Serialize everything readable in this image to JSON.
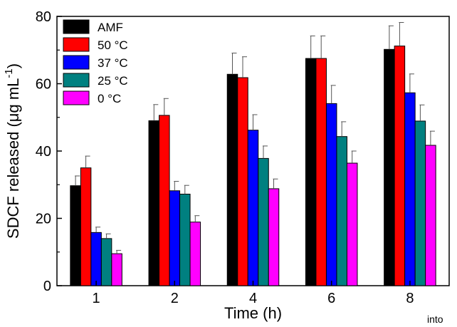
{
  "chart_data": {
    "type": "bar",
    "categories": [
      "1",
      "2",
      "4",
      "6",
      "8"
    ],
    "xlabel": "Time (h)",
    "ylabel": {
      "main": "SDCF released (",
      "mu": "μ",
      "unit": "g mL",
      "exp": "-1",
      "close": ")"
    },
    "ylim": [
      0,
      80
    ],
    "yticks": [
      0,
      20,
      40,
      60,
      80
    ],
    "grid": false,
    "legend_position": "top-left",
    "series": [
      {
        "name": "AMF",
        "color": "#000000",
        "values": [
          29.7,
          49.0,
          62.8,
          67.5,
          70.2
        ],
        "errors": [
          2.9,
          4.8,
          6.3,
          6.7,
          7.0
        ]
      },
      {
        "name": "50 °C",
        "color": "#ff0000",
        "values": [
          35.0,
          50.6,
          61.8,
          67.5,
          71.2
        ],
        "errors": [
          3.5,
          5.0,
          6.2,
          6.7,
          7.0
        ]
      },
      {
        "name": "37 °C",
        "color": "#0000ff",
        "values": [
          15.8,
          28.2,
          46.2,
          54.1,
          57.3
        ],
        "errors": [
          1.6,
          2.8,
          4.6,
          5.4,
          5.6
        ]
      },
      {
        "name": "25 °C",
        "color": "#008080",
        "values": [
          14.0,
          27.2,
          37.8,
          44.3,
          48.9
        ],
        "errors": [
          1.4,
          2.6,
          3.7,
          4.4,
          4.8
        ]
      },
      {
        "name": "0 °C",
        "color": "#ff00ff",
        "values": [
          9.5,
          18.9,
          28.8,
          36.4,
          41.7
        ],
        "errors": [
          1.0,
          1.9,
          2.9,
          3.6,
          4.2
        ]
      }
    ]
  },
  "footnote": "into"
}
